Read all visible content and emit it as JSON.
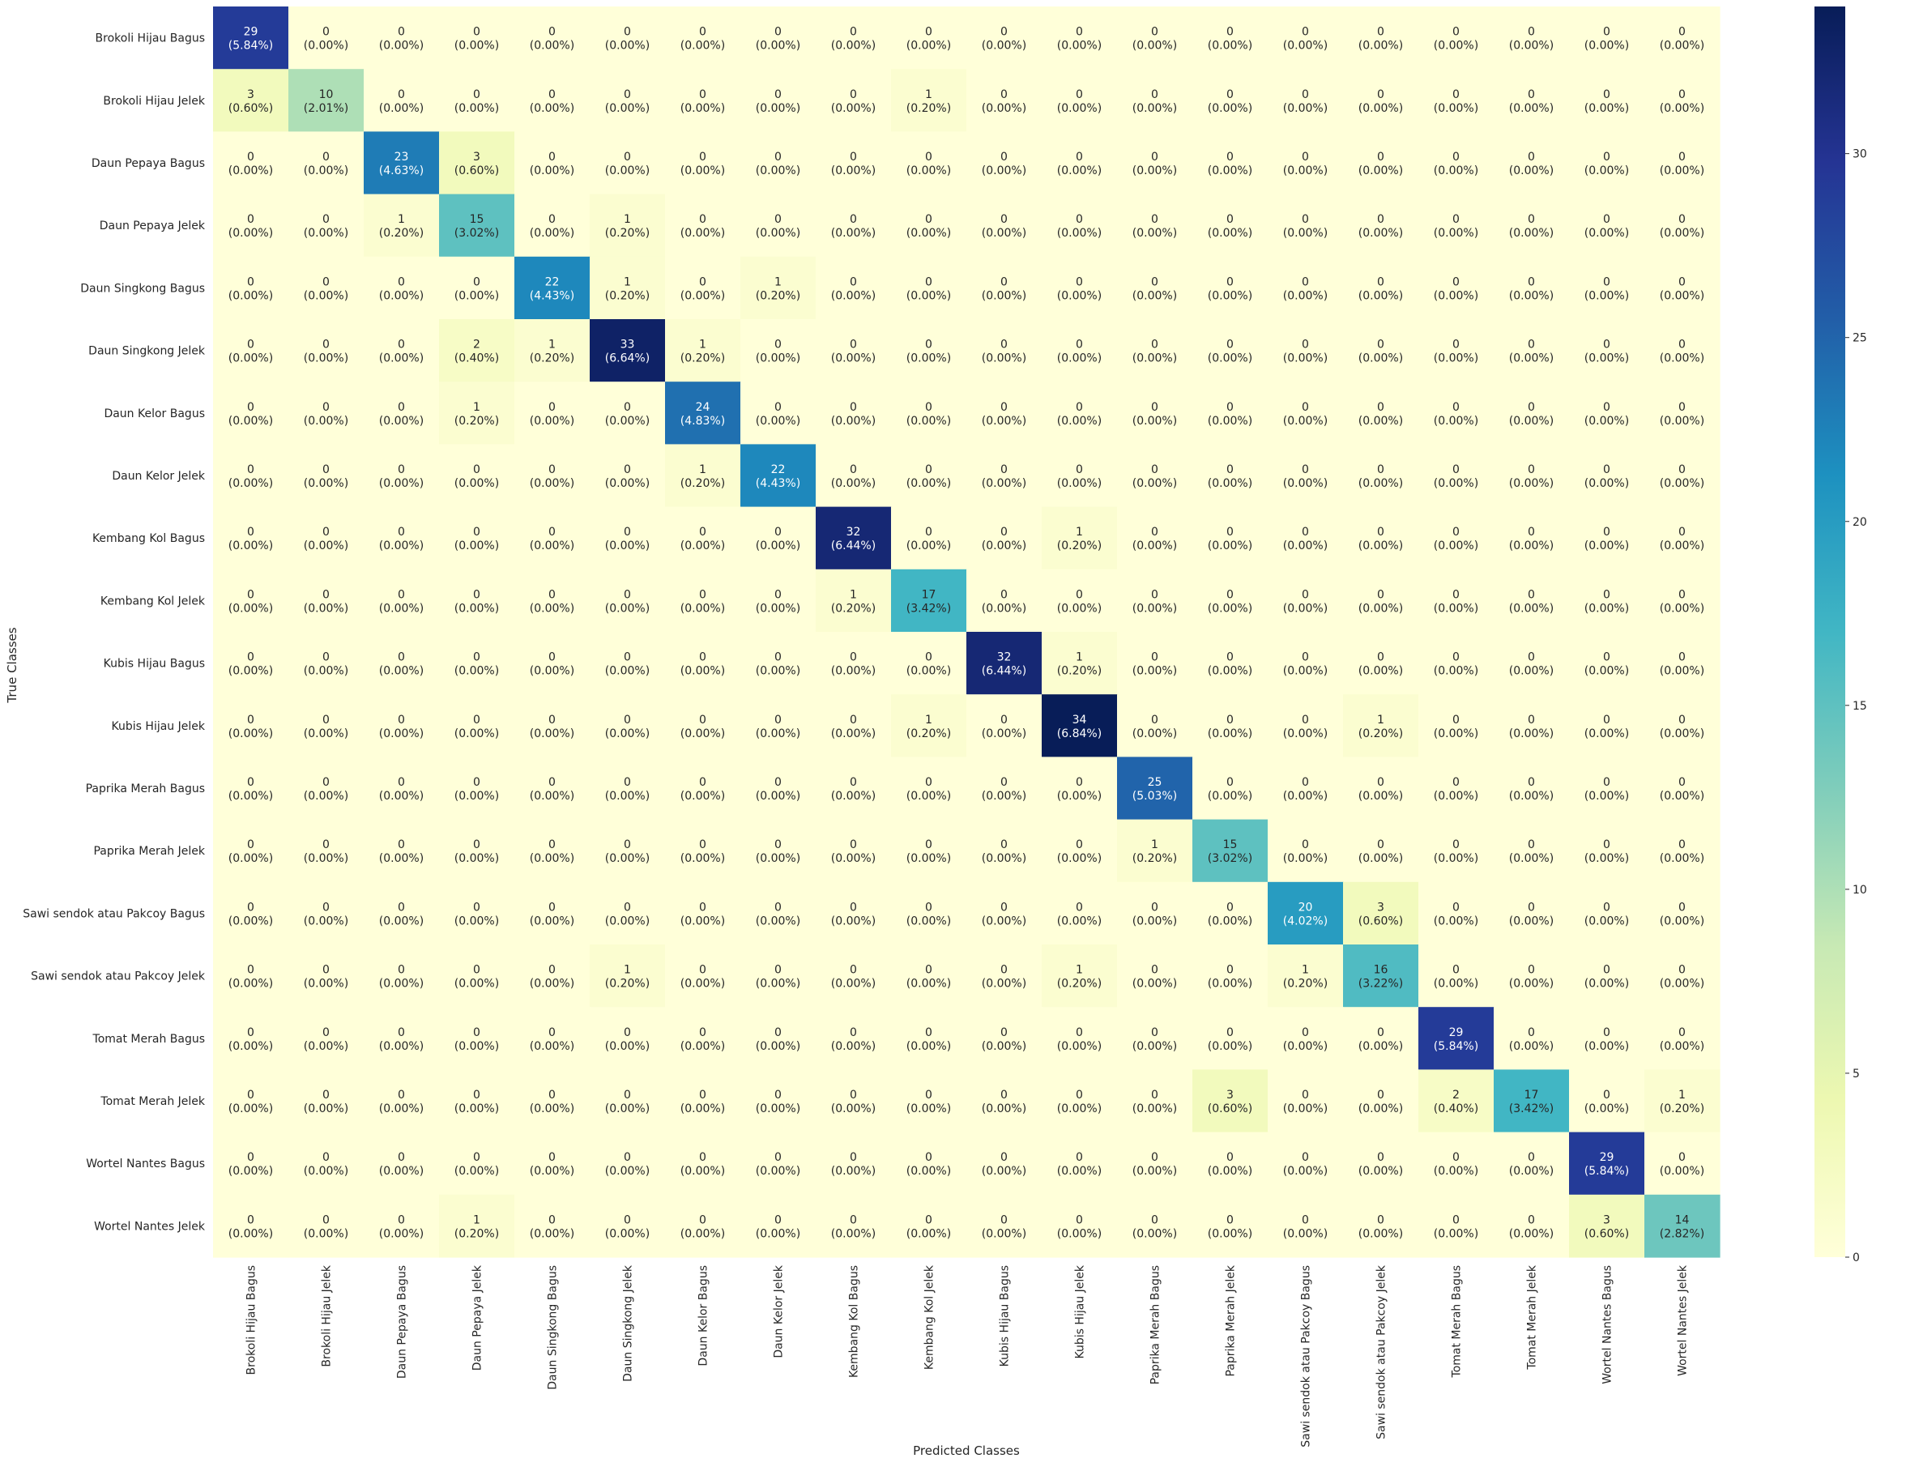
{
  "chart_data": {
    "type": "heatmap",
    "title": "",
    "xlabel": "Predicted Classes",
    "ylabel": "True Classes",
    "classes": [
      "Brokoli Hijau Bagus",
      "Brokoli Hijau Jelek",
      "Daun Pepaya Bagus",
      "Daun Pepaya Jelek",
      "Daun Singkong Bagus",
      "Daun Singkong Jelek",
      "Daun Kelor Bagus",
      "Daun Kelor Jelek",
      "Kembang Kol Bagus",
      "Kembang Kol Jelek",
      "Kubis Hijau Bagus",
      "Kubis Hijau Jelek",
      "Paprika Merah Bagus",
      "Paprika Merah Jelek",
      "Sawi sendok atau Pakcoy Bagus",
      "Sawi sendok atau Pakcoy Jelek",
      "Tomat Merah Bagus",
      "Tomat Merah Jelek",
      "Wortel Nantes Bagus",
      "Wortel Nantes Jelek"
    ],
    "matrix": [
      [
        29,
        0,
        0,
        0,
        0,
        0,
        0,
        0,
        0,
        0,
        0,
        0,
        0,
        0,
        0,
        0,
        0,
        0,
        0,
        0
      ],
      [
        3,
        10,
        0,
        0,
        0,
        0,
        0,
        0,
        0,
        1,
        0,
        0,
        0,
        0,
        0,
        0,
        0,
        0,
        0,
        0
      ],
      [
        0,
        0,
        23,
        3,
        0,
        0,
        0,
        0,
        0,
        0,
        0,
        0,
        0,
        0,
        0,
        0,
        0,
        0,
        0,
        0
      ],
      [
        0,
        0,
        1,
        15,
        0,
        1,
        0,
        0,
        0,
        0,
        0,
        0,
        0,
        0,
        0,
        0,
        0,
        0,
        0,
        0
      ],
      [
        0,
        0,
        0,
        0,
        22,
        1,
        0,
        1,
        0,
        0,
        0,
        0,
        0,
        0,
        0,
        0,
        0,
        0,
        0,
        0
      ],
      [
        0,
        0,
        0,
        2,
        1,
        33,
        1,
        0,
        0,
        0,
        0,
        0,
        0,
        0,
        0,
        0,
        0,
        0,
        0,
        0
      ],
      [
        0,
        0,
        0,
        1,
        0,
        0,
        24,
        0,
        0,
        0,
        0,
        0,
        0,
        0,
        0,
        0,
        0,
        0,
        0,
        0
      ],
      [
        0,
        0,
        0,
        0,
        0,
        0,
        1,
        22,
        0,
        0,
        0,
        0,
        0,
        0,
        0,
        0,
        0,
        0,
        0,
        0
      ],
      [
        0,
        0,
        0,
        0,
        0,
        0,
        0,
        0,
        32,
        0,
        0,
        1,
        0,
        0,
        0,
        0,
        0,
        0,
        0,
        0
      ],
      [
        0,
        0,
        0,
        0,
        0,
        0,
        0,
        0,
        1,
        17,
        0,
        0,
        0,
        0,
        0,
        0,
        0,
        0,
        0,
        0
      ],
      [
        0,
        0,
        0,
        0,
        0,
        0,
        0,
        0,
        0,
        0,
        32,
        1,
        0,
        0,
        0,
        0,
        0,
        0,
        0,
        0
      ],
      [
        0,
        0,
        0,
        0,
        0,
        0,
        0,
        0,
        0,
        1,
        0,
        34,
        0,
        0,
        0,
        1,
        0,
        0,
        0,
        0
      ],
      [
        0,
        0,
        0,
        0,
        0,
        0,
        0,
        0,
        0,
        0,
        0,
        0,
        25,
        0,
        0,
        0,
        0,
        0,
        0,
        0
      ],
      [
        0,
        0,
        0,
        0,
        0,
        0,
        0,
        0,
        0,
        0,
        0,
        0,
        1,
        15,
        0,
        0,
        0,
        0,
        0,
        0
      ],
      [
        0,
        0,
        0,
        0,
        0,
        0,
        0,
        0,
        0,
        0,
        0,
        0,
        0,
        0,
        20,
        3,
        0,
        0,
        0,
        0
      ],
      [
        0,
        0,
        0,
        0,
        0,
        1,
        0,
        0,
        0,
        0,
        0,
        1,
        0,
        0,
        1,
        16,
        0,
        0,
        0,
        0
      ],
      [
        0,
        0,
        0,
        0,
        0,
        0,
        0,
        0,
        0,
        0,
        0,
        0,
        0,
        0,
        0,
        0,
        29,
        0,
        0,
        0
      ],
      [
        0,
        0,
        0,
        0,
        0,
        0,
        0,
        0,
        0,
        0,
        0,
        0,
        0,
        3,
        0,
        0,
        2,
        17,
        0,
        1
      ],
      [
        0,
        0,
        0,
        0,
        0,
        0,
        0,
        0,
        0,
        0,
        0,
        0,
        0,
        0,
        0,
        0,
        0,
        0,
        29,
        0
      ],
      [
        0,
        0,
        0,
        1,
        0,
        0,
        0,
        0,
        0,
        0,
        0,
        0,
        0,
        0,
        0,
        0,
        0,
        0,
        3,
        14
      ]
    ],
    "percent_total": 497,
    "value_range": [
      0,
      34
    ],
    "colorbar_ticks": [
      0,
      5,
      10,
      15,
      20,
      25,
      30
    ],
    "colormap": "YlGnBu",
    "colormap_stops": [
      "#ffffd9",
      "#edf8b1",
      "#c7e9b4",
      "#7fcdbb",
      "#41b6c4",
      "#1d91c0",
      "#225ea8",
      "#253494",
      "#081d58"
    ]
  }
}
